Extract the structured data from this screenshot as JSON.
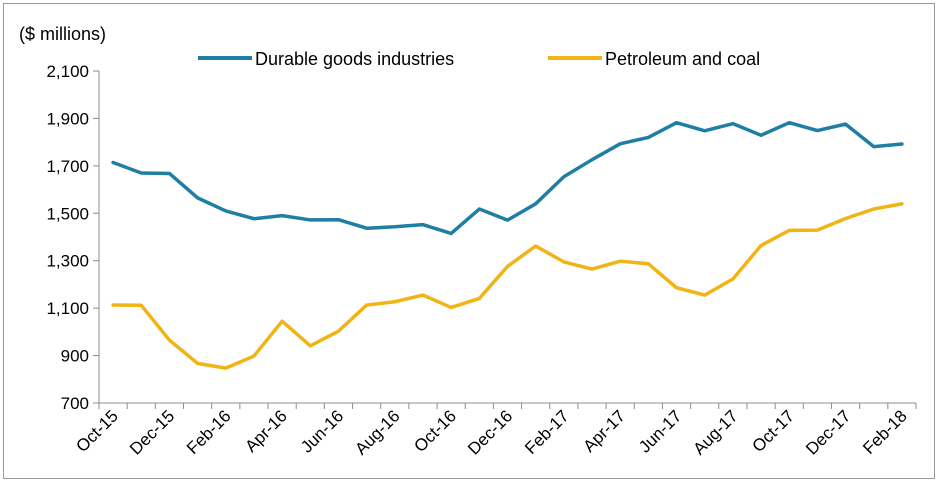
{
  "chart_data": {
    "type": "line",
    "ylabel": "($ millions)",
    "ylim": [
      700,
      2100
    ],
    "yticks": [
      700,
      900,
      1100,
      1300,
      1500,
      1700,
      1900,
      2100
    ],
    "ytick_labels": [
      "700",
      "900",
      "1,100",
      "1,300",
      "1,500",
      "1,700",
      "1,900",
      "2,100"
    ],
    "x": [
      "Oct-15",
      "Nov-15",
      "Dec-15",
      "Jan-16",
      "Feb-16",
      "Mar-16",
      "Apr-16",
      "May-16",
      "Jun-16",
      "Jul-16",
      "Aug-16",
      "Sep-16",
      "Oct-16",
      "Nov-16",
      "Dec-16",
      "Jan-17",
      "Feb-17",
      "Mar-17",
      "Apr-17",
      "May-17",
      "Jun-17",
      "Jul-17",
      "Aug-17",
      "Sep-17",
      "Oct-17",
      "Nov-17",
      "Dec-17",
      "Jan-18",
      "Feb-18"
    ],
    "xtick_labels": [
      "Oct-15",
      "Dec-15",
      "Feb-16",
      "Apr-16",
      "Jun-16",
      "Aug-16",
      "Oct-16",
      "Dec-16",
      "Feb-17",
      "Apr-17",
      "Jun-17",
      "Aug-17",
      "Oct-17",
      "Dec-17",
      "Feb-18"
    ],
    "legend_position": "top",
    "grid": false,
    "series": [
      {
        "name": "Durable goods industries",
        "color": "#1f7fa3",
        "values": [
          1714,
          1670,
          1668,
          1565,
          1510,
          1477,
          1490,
          1472,
          1473,
          1437,
          1443,
          1452,
          1415,
          1518,
          1471,
          1540,
          1654,
          1726,
          1793,
          1820,
          1882,
          1848,
          1878,
          1829,
          1882,
          1849,
          1876,
          1781,
          1792
        ]
      },
      {
        "name": "Petroleum and coal",
        "color": "#f0b514",
        "values": [
          1113,
          1112,
          965,
          867,
          847,
          898,
          1045,
          941,
          1003,
          1113,
          1127,
          1155,
          1103,
          1141,
          1276,
          1362,
          1295,
          1265,
          1298,
          1287,
          1186,
          1155,
          1223,
          1364,
          1428,
          1429,
          1478,
          1518,
          1540
        ]
      }
    ]
  }
}
